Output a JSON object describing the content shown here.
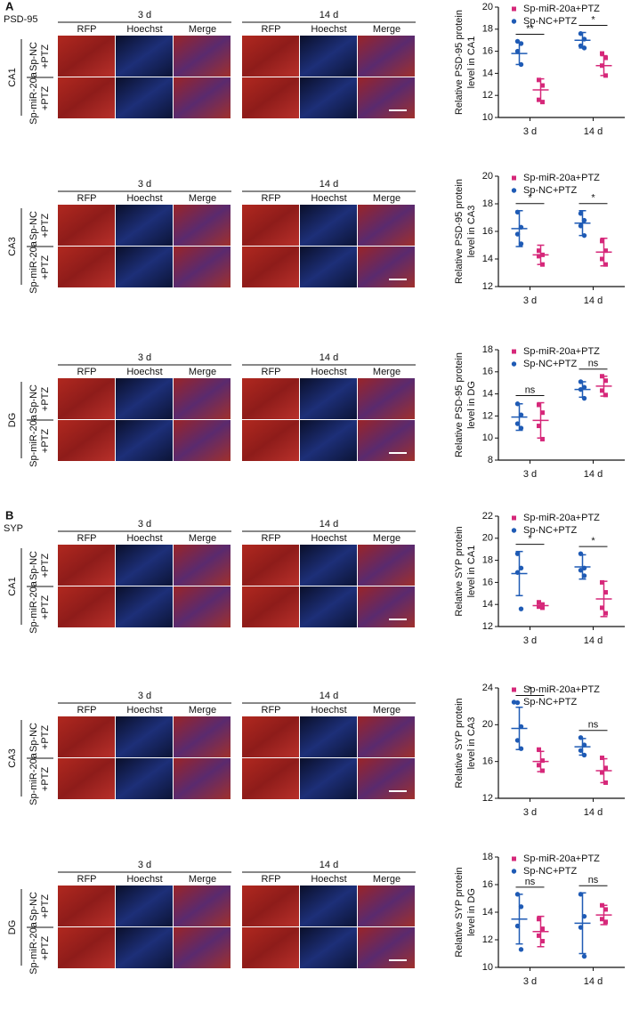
{
  "panels": [
    {
      "letter": "A",
      "protein": "PSD-95"
    },
    {
      "letter": "B",
      "protein": "SYP"
    }
  ],
  "image_rows": [
    {
      "region": "CA1",
      "groups": [
        "3 d",
        "14 d"
      ],
      "channels": [
        "RFP",
        "Hoechst",
        "Merge"
      ],
      "conditions": [
        [
          "Sp-NC",
          "+PTZ"
        ],
        [
          "Sp-miR-20a",
          "+PTZ"
        ]
      ]
    },
    {
      "region": "CA3",
      "groups": [
        "3 d",
        "14 d"
      ],
      "channels": [
        "RFP",
        "Hoechst",
        "Merge"
      ],
      "conditions": [
        [
          "Sp-NC",
          "+PTZ"
        ],
        [
          "Sp-miR-20a",
          "+PTZ"
        ]
      ]
    },
    {
      "region": "DG",
      "groups": [
        "3 d",
        "14 d"
      ],
      "channels": [
        "RFP",
        "Hoechst",
        "Merge"
      ],
      "conditions": [
        [
          "Sp-NC",
          "+PTZ"
        ],
        [
          "Sp-miR-20a",
          "+PTZ"
        ]
      ]
    },
    {
      "region": "CA1",
      "groups": [
        "3 d",
        "14 d"
      ],
      "channels": [
        "RFP",
        "Hoechst",
        "Merge"
      ],
      "conditions": [
        [
          "Sp-NC",
          "+PTZ"
        ],
        [
          "Sp-miR-20a",
          "+PTZ"
        ]
      ]
    },
    {
      "region": "CA3",
      "groups": [
        "3 d",
        "14 d"
      ],
      "channels": [
        "RFP",
        "Hoechst",
        "Merge"
      ],
      "conditions": [
        [
          "Sp-NC",
          "+PTZ"
        ],
        [
          "Sp-miR-20a",
          "+PTZ"
        ]
      ]
    },
    {
      "region": "DG",
      "groups": [
        "3 d",
        "14 d"
      ],
      "channels": [
        "RFP",
        "Hoechst",
        "Merge"
      ],
      "conditions": [
        [
          "Sp-NC",
          "+PTZ"
        ],
        [
          "Sp-miR-20a",
          "+PTZ"
        ]
      ]
    }
  ],
  "chart_data": [
    {
      "type": "scatter",
      "ylabel": [
        "Relative PSD-95 protein",
        "level in CA1"
      ],
      "categories": [
        "3 d",
        "14 d"
      ],
      "ylim": [
        10,
        20
      ],
      "yticks": [
        10,
        12,
        14,
        16,
        18,
        20
      ],
      "series": [
        {
          "name": "Sp-miR-20a+PTZ",
          "color": "#d6287a",
          "marker": "square",
          "values": [
            [
              13.4,
              12.9,
              11.6,
              11.4
            ],
            [
              15.8,
              15.4,
              14.7,
              13.8
            ]
          ],
          "mean": [
            12.5,
            14.7
          ],
          "sd": [
            1.0,
            0.9
          ]
        },
        {
          "name": "Sp-NC+PTZ",
          "color": "#1f5bb5",
          "marker": "circle",
          "values": [
            [
              16.9,
              16.7,
              16.0,
              14.8
            ],
            [
              17.6,
              17.1,
              16.5,
              16.3
            ]
          ],
          "mean": [
            15.8,
            17.0
          ],
          "sd": [
            1.0,
            0.7
          ]
        }
      ],
      "significance": [
        "**",
        "*"
      ]
    },
    {
      "type": "scatter",
      "ylabel": [
        "Relative PSD-95 protein",
        "level in CA3"
      ],
      "categories": [
        "3 d",
        "14 d"
      ],
      "ylim": [
        12,
        20
      ],
      "yticks": [
        12,
        14,
        16,
        18,
        20
      ],
      "series": [
        {
          "name": "Sp-miR-20a+PTZ",
          "color": "#d6287a",
          "marker": "square",
          "values": [
            [
              14.6,
              14.3,
              14.2,
              13.6
            ],
            [
              15.3,
              14.6,
              14.0,
              13.6
            ]
          ],
          "mean": [
            14.3,
            14.5
          ],
          "sd": [
            0.7,
            1.0
          ]
        },
        {
          "name": "Sp-NC+PTZ",
          "color": "#1f5bb5",
          "marker": "circle",
          "values": [
            [
              17.4,
              16.3,
              15.8,
              15.1
            ],
            [
              17.3,
              16.8,
              16.4,
              15.7
            ]
          ],
          "mean": [
            16.2,
            16.6
          ],
          "sd": [
            1.3,
            0.9
          ]
        }
      ],
      "significance": [
        "*",
        "*"
      ]
    },
    {
      "type": "scatter",
      "ylabel": [
        "Relative PSD-95 protein",
        "level in DG"
      ],
      "categories": [
        "3 d",
        "14 d"
      ],
      "ylim": [
        8,
        18
      ],
      "yticks": [
        8,
        10,
        12,
        14,
        16,
        18
      ],
      "series": [
        {
          "name": "Sp-miR-20a+PTZ",
          "color": "#d6287a",
          "marker": "square",
          "values": [
            [
              13.0,
              12.3,
              11.1,
              9.9
            ],
            [
              15.6,
              15.2,
              14.3,
              13.9
            ]
          ],
          "mean": [
            11.6,
            14.7
          ],
          "sd": [
            1.6,
            0.9
          ]
        },
        {
          "name": "Sp-NC+PTZ",
          "color": "#1f5bb5",
          "marker": "circle",
          "values": [
            [
              13.1,
              12.1,
              11.3,
              10.9
            ],
            [
              15.1,
              14.6,
              14.4,
              13.6
            ]
          ],
          "mean": [
            11.9,
            14.4
          ],
          "sd": [
            1.2,
            0.7
          ]
        }
      ],
      "significance": [
        "ns",
        "ns"
      ]
    },
    {
      "type": "scatter",
      "ylabel": [
        "Relative SYP protein",
        "level in CA1"
      ],
      "categories": [
        "3 d",
        "14 d"
      ],
      "ylim": [
        12,
        22
      ],
      "yticks": [
        12,
        14,
        16,
        18,
        20,
        22
      ],
      "series": [
        {
          "name": "Sp-miR-20a+PTZ",
          "color": "#d6287a",
          "marker": "square",
          "values": [
            [
              14.2,
              14.0,
              13.8,
              13.7
            ],
            [
              16.0,
              15.1,
              13.7,
              13.2
            ]
          ],
          "mean": [
            13.9,
            14.5
          ],
          "sd": [
            0.2,
            1.6
          ]
        },
        {
          "name": "Sp-NC+PTZ",
          "color": "#1f5bb5",
          "marker": "circle",
          "values": [
            [
              18.6,
              17.3,
              16.9,
              13.6
            ],
            [
              18.6,
              17.3,
              17.1,
              16.6
            ]
          ],
          "mean": [
            16.8,
            17.4
          ],
          "sd": [
            2.0,
            1.1
          ]
        }
      ],
      "significance": [
        "*",
        "*"
      ]
    },
    {
      "type": "scatter",
      "ylabel": [
        "Relative SYP protein",
        "level in CA3"
      ],
      "categories": [
        "3 d",
        "14 d"
      ],
      "ylim": [
        12,
        24
      ],
      "yticks": [
        12,
        16,
        20,
        24
      ],
      "series": [
        {
          "name": "Sp-miR-20a+PTZ",
          "color": "#d6287a",
          "marker": "square",
          "values": [
            [
              17.3,
              16.1,
              15.6,
              15.0
            ],
            [
              16.4,
              15.3,
              14.8,
              13.7
            ]
          ],
          "mean": [
            16.0,
            15.0
          ],
          "sd": [
            1.1,
            1.3
          ]
        },
        {
          "name": "Sp-NC+PTZ",
          "color": "#1f5bb5",
          "marker": "circle",
          "values": [
            [
              22.4,
              19.8,
              18.3,
              17.4
            ],
            [
              18.6,
              17.8,
              17.2,
              16.7
            ]
          ],
          "mean": [
            19.6,
            17.6
          ],
          "sd": [
            2.3,
            0.9
          ]
        }
      ],
      "significance": [
        "*",
        "ns"
      ]
    },
    {
      "type": "scatter",
      "ylabel": [
        "Relative SYP protein",
        "level in DG"
      ],
      "categories": [
        "3 d",
        "14 d"
      ],
      "ylim": [
        10,
        18
      ],
      "yticks": [
        10,
        12,
        14,
        16,
        18
      ],
      "series": [
        {
          "name": "Sp-miR-20a+PTZ",
          "color": "#d6287a",
          "marker": "square",
          "values": [
            [
              13.5,
              12.8,
              12.3,
              11.9
            ],
            [
              14.5,
              14.2,
              13.5,
              13.3
            ]
          ],
          "mean": [
            12.6,
            13.8
          ],
          "sd": [
            1.1,
            0.7
          ]
        },
        {
          "name": "Sp-NC+PTZ",
          "color": "#1f5bb5",
          "marker": "circle",
          "values": [
            [
              15.3,
              14.4,
              13.0,
              11.3
            ],
            [
              15.3,
              13.7,
              12.9,
              10.8
            ]
          ],
          "mean": [
            13.5,
            13.2
          ],
          "sd": [
            1.8,
            2.2
          ]
        }
      ],
      "significance": [
        "ns",
        "ns"
      ]
    }
  ]
}
